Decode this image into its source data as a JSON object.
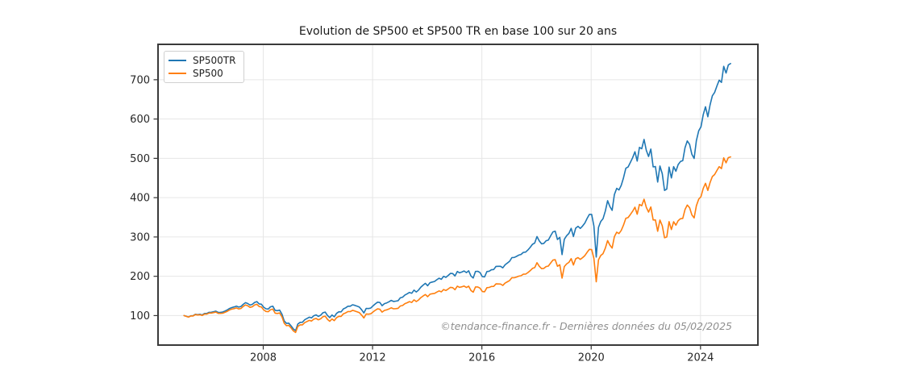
{
  "chart": {
    "title": "Evolution de SP500 et SP500 TR en base 100 sur 20 ans",
    "watermark": "©tendance-finance.fr - Dernières données du 05/02/2025",
    "legend": [
      {
        "label": "SP500TR",
        "color": "#1f77b4"
      },
      {
        "label": "SP500",
        "color": "#ff7f0e"
      }
    ]
  },
  "chart_data": {
    "type": "line",
    "title": "Evolution de SP500 et SP500 TR en base 100 sur 20 ans",
    "xlabel": "",
    "ylabel": "",
    "x_unit": "year",
    "x_start": 2005.1,
    "x_step": 0.0833333,
    "period": "2005-02 to 2025-02, monthly",
    "xlim": [
      2004.15,
      2026.1
    ],
    "ylim": [
      25,
      790
    ],
    "x_ticks": [
      2008,
      2012,
      2016,
      2020,
      2024
    ],
    "y_ticks": [
      100,
      200,
      300,
      400,
      500,
      600,
      700
    ],
    "grid": true,
    "legend_position": "upper left",
    "style": {
      "grid_color": "#e6e6e6",
      "spine_color": "#3a3a3a",
      "tick_color": "#333333",
      "label_color": "#262626",
      "line_width": 1.6
    },
    "series": [
      {
        "name": "SP500TR",
        "color": "#1f77b4",
        "base": 100,
        "values": [
          100,
          98.3,
          96.4,
          99.5,
          99.6,
          103.3,
          102.4,
          103.3,
          101.6,
          105.3,
          105.4,
          108.3,
          108.5,
          109.9,
          111.4,
          108.1,
          108.3,
          109,
          111.5,
          114.4,
          118.2,
          120.4,
          122,
          124,
          121.5,
          123,
          128.5,
          132.8,
          130.7,
          126.7,
          128.6,
          133.4,
          135.5,
          129.8,
          128.9,
          121.1,
          117.2,
          116.6,
          122.4,
          123.9,
          113.4,
          112.5,
          114.1,
          103.8,
          86.4,
          80.1,
          80.8,
          74,
          66,
          61.7,
          78.6,
          82.9,
          83.1,
          89.3,
          92.5,
          95.9,
          94.2,
          99.7,
          101.7,
          98.1,
          101.1,
          107.2,
          108.9,
          100.2,
          94.9,
          101.6,
          97,
          105.6,
          109.7,
          109.6,
          117,
          119.8,
          123.8,
          123.9,
          127.6,
          126.1,
          124,
          121.6,
          114.8,
          106.7,
          118.4,
          118,
          119.2,
          124.6,
          129.9,
          134.2,
          133.3,
          125.3,
          130.4,
          132.2,
          135.1,
          138.6,
          136,
          136.7,
          137.9,
          145.1,
          146.8,
          152.4,
          155.4,
          158.9,
          156.8,
          164.8,
          159.9,
          164.9,
          172.5,
          177.6,
          182.2,
          175.9,
          183.8,
          185.4,
          186.8,
          191.1,
          195.1,
          192.4,
          199.9,
          197.2,
          202.1,
          207.4,
          206.9,
          200.8,
          212.2,
          208.7,
          210.9,
          213.4,
          209.3,
          213.8,
          200.8,
          195.7,
          212.3,
          212.7,
          209.3,
          199.1,
          198.5,
          212,
          212.9,
          216.5,
          217.1,
          225.2,
          225.3,
          225.4,
          221.4,
          229.3,
          233.8,
          238.3,
          247.6,
          247.9,
          250.6,
          253.9,
          255.5,
          260.8,
          261.5,
          266.9,
          273.3,
          281.4,
          284.6,
          301.1,
          289.9,
          282.5,
          283.7,
          290.4,
          292.3,
          303.2,
          312.9,
          314.8,
          293.4,
          299.1,
          255.2,
          294,
          303.1,
          309.1,
          321.9,
          301.2,
          322.4,
          327.1,
          321.7,
          327.8,
          335.1,
          347.1,
          357.5,
          357.5,
          327.9,
          249,
          324.4,
          339.5,
          346.4,
          366.1,
          392.3,
          377.6,
          367.7,
          407.9,
          423.8,
          419.7,
          431.3,
          450.4,
          474.8,
          478.1,
          489.6,
          501.5,
          516.9,
          493,
          527.9,
          524.4,
          548.2,
          520.2,
          504.7,
          523.6,
          478.3,
          479.1,
          439.6,
          480.5,
          460.8,
          418.4,
          422,
          477.7,
          450.2,
          478.8,
          467.1,
          484.2,
          492,
          494.1,
          527,
          544.2,
          535.4,
          510.2,
          499.7,
          545.2,
          570.2,
          580.2,
          611.2,
          631.3,
          605.9,
          636.1,
          659.2,
          667.6,
          684.1,
          699,
          693.1,
          734.1,
          716.9,
          737.5,
          741.2
        ]
      },
      {
        "name": "SP500",
        "color": "#ff7f0e",
        "base": 100,
        "values": [
          100,
          98.1,
          96.1,
          99,
          99,
          102.5,
          101.4,
          102.1,
          100.3,
          103.8,
          103.7,
          106.4,
          106.4,
          107.6,
          108.9,
          105.5,
          105.5,
          106.1,
          108.3,
          111,
          114.5,
          116.4,
          117.8,
          119.5,
          116.9,
          118.1,
          123.2,
          127.2,
          124.9,
          120.9,
          122.5,
          126.9,
          128.7,
          123.1,
          122,
          114.5,
          110.6,
          109.9,
          115.1,
          116.4,
          106.3,
          105.3,
          106.6,
          96.9,
          80.5,
          74.5,
          75,
          68.6,
          61.1,
          57,
          72.5,
          76.4,
          76.4,
          82,
          84.8,
          87.8,
          86.1,
          91,
          92.6,
          89.2,
          91.8,
          97.2,
          98.6,
          90.5,
          85.6,
          91.5,
          87.2,
          94.8,
          98.3,
          98.1,
          104.5,
          106.9,
          110.3,
          110.2,
          113.3,
          111.8,
          109.7,
          107.4,
          101.3,
          94,
          104.1,
          103.6,
          104.5,
          109,
          113.5,
          117,
          116.1,
          108.9,
          113.2,
          114.6,
          116.9,
          119.7,
          117.3,
          117.7,
          118.5,
          124.5,
          125.8,
          130.4,
          132.7,
          135.5,
          133.5,
          140.1,
          135.7,
          139.7,
          145.9,
          150,
          153.6,
          148.1,
          154.5,
          155.6,
          156.5,
          159.8,
          162.9,
          160.4,
          166.4,
          163.9,
          167.7,
          171.8,
          171.1,
          165.8,
          174.9,
          171.8,
          173.3,
          175.1,
          171.4,
          174.8,
          163.9,
          159.5,
          172.8,
          172.8,
          169.8,
          161.2,
          160.5,
          171.1,
          171.6,
          174.2,
          174.4,
          180.6,
          180.4,
          180.2,
          176.7,
          182.7,
          186,
          189.3,
          196.4,
          196.3,
          198.1,
          200.4,
          201.3,
          205.2,
          205.4,
          209.3,
          214,
          220,
          222.1,
          234.6,
          225.5,
          219.4,
          220,
          224.8,
          225.9,
          234,
          241.1,
          242.1,
          225.3,
          229.3,
          195.3,
          224.7,
          231.3,
          235.5,
          244.8,
          228.7,
          244.4,
          247.6,
          243.1,
          247.3,
          252.4,
          261,
          268.4,
          268,
          245.4,
          186,
          242,
          252.9,
          257.6,
          271.8,
          290.8,
          279.4,
          271.7,
          300.9,
          312.1,
          308.6,
          316.6,
          330.1,
          347.4,
          349.3,
          357.1,
          365.2,
          375.8,
          357.9,
          382.6,
          379.4,
          396,
          375.2,
          363.4,
          376.4,
          343.3,
          343.3,
          314.5,
          343.2,
          328.6,
          297.9,
          300,
          339,
          319,
          338.7,
          329.9,
          341.4,
          346.4,
          347.3,
          369.8,
          381.3,
          374.5,
          356.3,
          348.4,
          379.5,
          396.3,
          402.6,
          423.4,
          436.6,
          418.4,
          438.5,
          453.7,
          458.8,
          469.3,
          478.8,
          474,
          501.2,
          488.7,
          501.9,
          503.6
        ]
      }
    ]
  }
}
